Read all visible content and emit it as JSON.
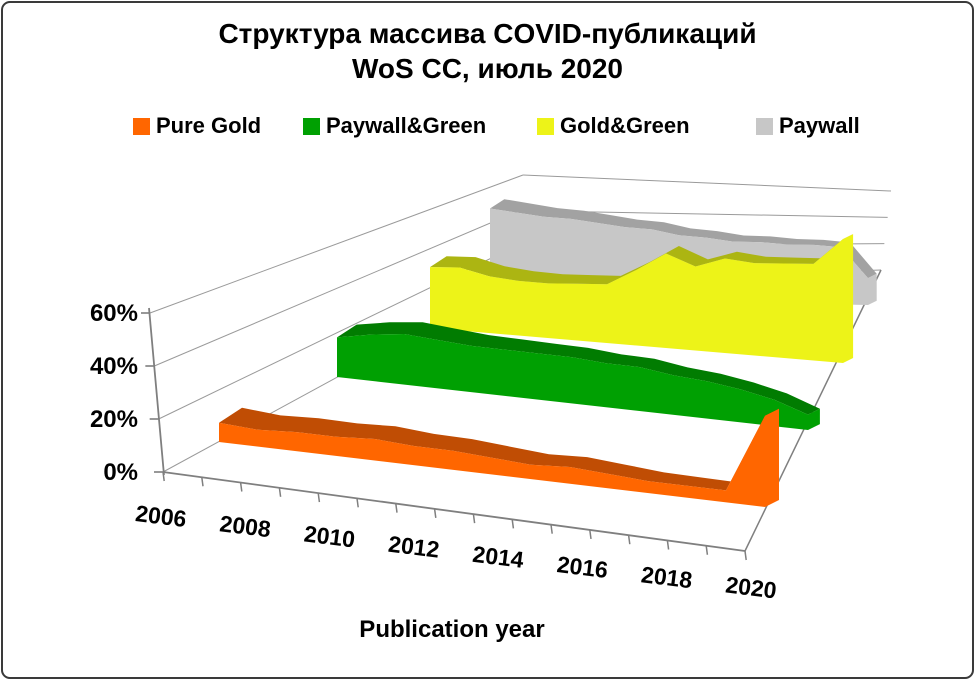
{
  "title": {
    "line1": "Структура массива COVID-публикаций",
    "line2": "WoS CC,  июль 2020"
  },
  "chart_data": {
    "type": "area",
    "projection": "3d-ribbon",
    "x": [
      2006,
      2007,
      2008,
      2009,
      2010,
      2011,
      2012,
      2013,
      2014,
      2015,
      2016,
      2017,
      2018,
      2019,
      2020
    ],
    "x_tick_labels": [
      "2006",
      "2008",
      "2010",
      "2012",
      "2014",
      "2016",
      "2018",
      "2020"
    ],
    "xlabel": "Publication year",
    "ylabel": "",
    "y_tick_labels": [
      "0%",
      "20%",
      "40%",
      "60%"
    ],
    "ylim": [
      0,
      60
    ],
    "grid": true,
    "legend_position": "top",
    "series": [
      {
        "name": "Pure Gold",
        "color": "#FF6600",
        "color_top": "#C04D04",
        "values": [
          8,
          7,
          8,
          8,
          9,
          8,
          8,
          7,
          6,
          7,
          6,
          5,
          5,
          5,
          38
        ]
      },
      {
        "name": "Paywall&Green",
        "color": "#00A002",
        "color_top": "#017C01",
        "values": [
          18,
          21,
          23,
          22,
          21,
          21,
          21,
          21,
          20,
          20,
          18,
          17,
          15,
          12,
          7
        ]
      },
      {
        "name": "Gold&Green",
        "color": "#EDF318",
        "color_top": "#ACB512",
        "values": [
          29,
          30,
          27,
          26,
          26,
          27,
          28,
          36,
          45,
          40,
          45,
          44,
          45,
          46,
          59
        ]
      },
      {
        "name": "Paywall",
        "color": "#C7C7C7",
        "color_top": "#A2A2A2",
        "values": [
          50,
          48,
          46,
          45,
          43,
          41,
          40,
          37,
          36,
          34,
          34,
          33,
          33,
          32,
          15
        ]
      }
    ]
  }
}
